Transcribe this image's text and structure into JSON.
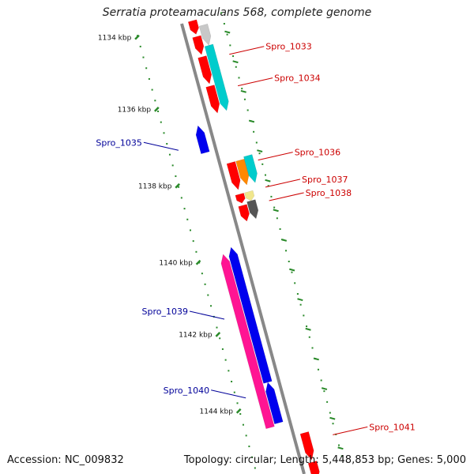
{
  "title": "Serratia proteamaculans 568, complete genome",
  "footer": {
    "accession": "Accession: NC_009832",
    "summary": "Topology: circular; Length: 5,448,853 bp; Genes: 5,000"
  },
  "colors": {
    "backbone": "#888888",
    "tick": "#2a8a2a",
    "forward_label": "#cc0000",
    "reverse_label": "#000099"
  },
  "ticks": [
    {
      "label": "1134 kbp",
      "t": 0.0
    },
    {
      "label": "1136 kbp",
      "t": 0.16
    },
    {
      "label": "1138 kbp",
      "t": 0.33
    },
    {
      "label": "1140 kbp",
      "t": 0.5
    },
    {
      "label": "1142 kbp",
      "t": 0.66
    },
    {
      "label": "1144 kbp",
      "t": 0.83
    }
  ],
  "features": [
    {
      "name": "",
      "strand": "+",
      "lane": 1,
      "start": 0.0,
      "end": 0.03,
      "color": "#ff0000"
    },
    {
      "name": "",
      "strand": "+",
      "lane": 1,
      "start": 0.035,
      "end": 0.075,
      "color": "#ff0000"
    },
    {
      "name": "",
      "strand": "+",
      "lane": 1,
      "start": 0.08,
      "end": 0.14,
      "color": "#ff0000"
    },
    {
      "name": "",
      "strand": "+",
      "lane": 1,
      "start": 0.145,
      "end": 0.205,
      "color": "#ff0000"
    },
    {
      "name": "",
      "strand": "+",
      "lane": 2,
      "start": 0.015,
      "end": 0.06,
      "color": "#c8c8c8"
    },
    {
      "name": "Spro_1033",
      "strand": "+",
      "lane": 2,
      "start": 0.06,
      "end": 0.205,
      "color": "#00cccc"
    },
    {
      "name": "Spro_1035",
      "strand": "-",
      "lane": 1,
      "start": 0.22,
      "end": 0.28,
      "color": "#0000ee"
    },
    {
      "name": "",
      "strand": "+",
      "lane": 1,
      "start": 0.315,
      "end": 0.375,
      "color": "#ff0000"
    },
    {
      "name": "Spro_1036",
      "strand": "+",
      "lane": 2,
      "start": 0.315,
      "end": 0.37,
      "color": "#ff8800"
    },
    {
      "name": "",
      "strand": "+",
      "lane": 3,
      "start": 0.31,
      "end": 0.37,
      "color": "#00cccc"
    },
    {
      "name": "",
      "strand": "+",
      "lane": 1,
      "start": 0.385,
      "end": 0.405,
      "color": "#ff0000"
    },
    {
      "name": "",
      "strand": "+",
      "lane": 1,
      "start": 0.41,
      "end": 0.445,
      "color": "#ff0000"
    },
    {
      "name": "Spro_1037",
      "strand": "+",
      "lane": 2,
      "start": 0.385,
      "end": 0.405,
      "color": "#f0e68c"
    },
    {
      "name": "Spro_1038",
      "strand": "+",
      "lane": 2,
      "start": 0.405,
      "end": 0.445,
      "color": "#555555"
    },
    {
      "name": "Spro_1039",
      "strand": "-",
      "lane": 2,
      "start": 0.5,
      "end": 0.885,
      "color": "#ff1493"
    },
    {
      "name": "",
      "strand": "-",
      "lane": 1,
      "start": 0.49,
      "end": 0.79,
      "color": "#0000ee"
    },
    {
      "name": "Spro_1040",
      "strand": "-",
      "lane": 1,
      "start": 0.79,
      "end": 0.88,
      "color": "#0000ee"
    },
    {
      "name": "Spro_1041",
      "strand": "+",
      "lane": 1,
      "start": 0.915,
      "end": 0.975,
      "color": "#ff0000"
    },
    {
      "name": "",
      "strand": "+",
      "lane": 1,
      "start": 0.98,
      "end": 1.05,
      "color": "#ff0000"
    }
  ],
  "labels": [
    {
      "text": "Spro_1033",
      "side": "right",
      "t": 0.09,
      "color": "#cc0000"
    },
    {
      "text": "Spro_1034",
      "side": "right",
      "t": 0.16,
      "color": "#cc0000"
    },
    {
      "text": "Spro_1035",
      "side": "left",
      "t": 0.26,
      "color": "#000099"
    },
    {
      "text": "Spro_1036",
      "side": "right",
      "t": 0.325,
      "color": "#cc0000"
    },
    {
      "text": "Spro_1037",
      "side": "right",
      "t": 0.385,
      "color": "#cc0000"
    },
    {
      "text": "Spro_1038",
      "side": "right",
      "t": 0.415,
      "color": "#cc0000"
    },
    {
      "text": "Spro_1039",
      "side": "left",
      "t": 0.635,
      "color": "#000099"
    },
    {
      "text": "Spro_1040",
      "side": "left",
      "t": 0.81,
      "color": "#000099"
    },
    {
      "text": "Spro_1041",
      "side": "right",
      "t": 0.935,
      "color": "#cc0000"
    }
  ]
}
